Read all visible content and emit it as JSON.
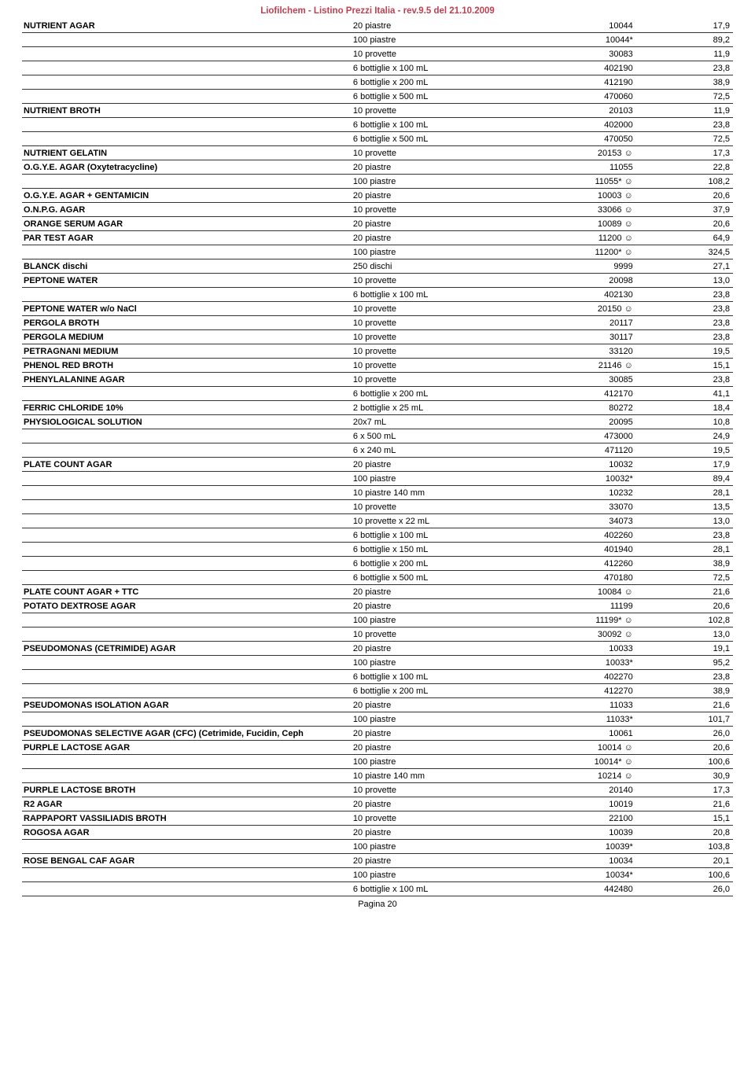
{
  "header": "Liofilchem - Listino Prezzi Italia - rev.9.5 del 21.10.2009",
  "footer": "Pagina 20",
  "rows": [
    {
      "name": "NUTRIENT AGAR",
      "pack": "20 piastre",
      "code": "10044",
      "price": "17,9"
    },
    {
      "name": "",
      "pack": "100 piastre",
      "code": "10044*",
      "price": "89,2"
    },
    {
      "name": "",
      "pack": "10 provette",
      "code": "30083",
      "price": "11,9"
    },
    {
      "name": "",
      "pack": "6 bottiglie x 100 mL",
      "code": "402190",
      "price": "23,8"
    },
    {
      "name": "",
      "pack": "6 bottiglie x 200 mL",
      "code": "412190",
      "price": "38,9"
    },
    {
      "name": "",
      "pack": "6 bottiglie x 500 mL",
      "code": "470060",
      "price": "72,5"
    },
    {
      "name": "NUTRIENT BROTH",
      "pack": "10 provette",
      "code": "20103",
      "price": "11,9"
    },
    {
      "name": "",
      "pack": "6 bottiglie x 100 mL",
      "code": "402000",
      "price": "23,8"
    },
    {
      "name": "",
      "pack": "6 bottiglie x 500 mL",
      "code": "470050",
      "price": "72,5"
    },
    {
      "name": "NUTRIENT GELATIN",
      "pack": "10 provette",
      "code": "20153 ☺",
      "price": "17,3"
    },
    {
      "name": "O.G.Y.E. AGAR (Oxytetracycline)",
      "pack": "20 piastre",
      "code": "11055",
      "price": "22,8"
    },
    {
      "name": "",
      "pack": "100 piastre",
      "code": "11055* ☺",
      "price": "108,2"
    },
    {
      "name": "O.G.Y.E. AGAR + GENTAMICIN",
      "pack": "20 piastre",
      "code": "10003 ☺",
      "price": "20,6"
    },
    {
      "name": "O.N.P.G. AGAR",
      "pack": "10 provette",
      "code": "33066 ☺",
      "price": "37,9"
    },
    {
      "name": "ORANGE SERUM AGAR",
      "pack": "20 piastre",
      "code": "10089 ☺",
      "price": "20,6"
    },
    {
      "name": "PAR TEST AGAR",
      "pack": "20 piastre",
      "code": "11200 ☺",
      "price": "64,9"
    },
    {
      "name": "",
      "pack": "100 piastre",
      "code": "11200* ☺",
      "price": "324,5"
    },
    {
      "name": "BLANCK dischi",
      "pack": "250 dischi",
      "code": "9999",
      "price": "27,1"
    },
    {
      "name": "PEPTONE WATER",
      "pack": "10 provette",
      "code": "20098",
      "price": "13,0"
    },
    {
      "name": "",
      "pack": "6 bottiglie x 100 mL",
      "code": "402130",
      "price": "23,8"
    },
    {
      "name": "PEPTONE WATER w/o NaCl",
      "pack": "10 provette",
      "code": "20150 ☺",
      "price": "23,8"
    },
    {
      "name": "PERGOLA BROTH",
      "pack": "10 provette",
      "code": "20117",
      "price": "23,8"
    },
    {
      "name": "PERGOLA MEDIUM",
      "pack": "10 provette",
      "code": "30117",
      "price": "23,8"
    },
    {
      "name": "PETRAGNANI MEDIUM",
      "pack": "10 provette",
      "code": "33120",
      "price": "19,5"
    },
    {
      "name": "PHENOL RED BROTH",
      "pack": "10 provette",
      "code": "21146 ☺",
      "price": "15,1"
    },
    {
      "name": "PHENYLALANINE AGAR",
      "pack": "10 provette",
      "code": "30085",
      "price": "23,8"
    },
    {
      "name": "",
      "pack": "6 bottiglie x 200 mL",
      "code": "412170",
      "price": "41,1"
    },
    {
      "name": "FERRIC CHLORIDE 10%",
      "pack": "2 bottiglie x 25 mL",
      "code": "80272",
      "price": "18,4"
    },
    {
      "name": "PHYSIOLOGICAL SOLUTION",
      "pack": "20x7 mL",
      "code": "20095",
      "price": "10,8"
    },
    {
      "name": "",
      "pack": "6 x 500 mL",
      "code": "473000",
      "price": "24,9"
    },
    {
      "name": "",
      "pack": "6 x 240 mL",
      "code": "471120",
      "price": "19,5"
    },
    {
      "name": "PLATE COUNT AGAR",
      "pack": "20 piastre",
      "code": "10032",
      "price": "17,9"
    },
    {
      "name": "",
      "pack": "100 piastre",
      "code": "10032*",
      "price": "89,4"
    },
    {
      "name": "",
      "pack": "10 piastre 140 mm",
      "code": "10232",
      "price": "28,1"
    },
    {
      "name": "",
      "pack": "10 provette",
      "code": "33070",
      "price": "13,5"
    },
    {
      "name": "",
      "pack": "10 provette x 22 mL",
      "code": "34073",
      "price": "13,0"
    },
    {
      "name": "",
      "pack": "6 bottiglie x 100 mL",
      "code": "402260",
      "price": "23,8"
    },
    {
      "name": "",
      "pack": "6 bottiglie x 150 mL",
      "code": "401940",
      "price": "28,1"
    },
    {
      "name": "",
      "pack": "6 bottiglie x 200 mL",
      "code": "412260",
      "price": "38,9"
    },
    {
      "name": "",
      "pack": "6 bottiglie x 500 mL",
      "code": "470180",
      "price": "72,5"
    },
    {
      "name": "PLATE COUNT AGAR + TTC",
      "pack": "20 piastre",
      "code": "10084 ☺",
      "price": "21,6"
    },
    {
      "name": "POTATO DEXTROSE AGAR",
      "pack": "20 piastre",
      "code": "11199",
      "price": "20,6"
    },
    {
      "name": "",
      "pack": "100 piastre",
      "code": "11199* ☺",
      "price": "102,8"
    },
    {
      "name": "",
      "pack": "10 provette",
      "code": "30092 ☺",
      "price": "13,0"
    },
    {
      "name": "PSEUDOMONAS (CETRIMIDE) AGAR",
      "pack": "20 piastre",
      "code": "10033",
      "price": "19,1"
    },
    {
      "name": "",
      "pack": "100 piastre",
      "code": "10033*",
      "price": "95,2"
    },
    {
      "name": "",
      "pack": "6 bottiglie x 100 mL",
      "code": "402270",
      "price": "23,8"
    },
    {
      "name": "",
      "pack": "6 bottiglie x 200 mL",
      "code": "412270",
      "price": "38,9"
    },
    {
      "name": "PSEUDOMONAS ISOLATION AGAR",
      "pack": "20 piastre",
      "code": "11033",
      "price": "21,6"
    },
    {
      "name": "",
      "pack": "100 piastre",
      "code": "11033*",
      "price": "101,7"
    },
    {
      "name": "PSEUDOMONAS SELECTIVE AGAR (CFC) (Cetrimide, Fucidin, Ceph",
      "pack": "20 piastre",
      "code": "10061",
      "price": "26,0"
    },
    {
      "name": "PURPLE LACTOSE AGAR",
      "pack": "20 piastre",
      "code": "10014 ☺",
      "price": "20,6"
    },
    {
      "name": "",
      "pack": "100 piastre",
      "code": "10014* ☺",
      "price": "100,6"
    },
    {
      "name": "",
      "pack": "10 piastre 140 mm",
      "code": "10214 ☺",
      "price": "30,9"
    },
    {
      "name": "PURPLE LACTOSE BROTH",
      "pack": "10 provette",
      "code": "20140",
      "price": "17,3"
    },
    {
      "name": "R2 AGAR",
      "pack": "20 piastre",
      "code": "10019",
      "price": "21,6"
    },
    {
      "name": "RAPPAPORT VASSILIADIS BROTH",
      "pack": "10 provette",
      "code": "22100",
      "price": "15,1"
    },
    {
      "name": "ROGOSA AGAR",
      "pack": "20 piastre",
      "code": "10039",
      "price": "20,8"
    },
    {
      "name": "",
      "pack": "100 piastre",
      "code": "10039*",
      "price": "103,8"
    },
    {
      "name": "ROSE BENGAL CAF AGAR",
      "pack": "20 piastre",
      "code": "10034",
      "price": "20,1"
    },
    {
      "name": "",
      "pack": "100 piastre",
      "code": "10034*",
      "price": "100,6"
    },
    {
      "name": "",
      "pack": "6 bottiglie x 100 mL",
      "code": "442480",
      "price": "26,0"
    }
  ]
}
